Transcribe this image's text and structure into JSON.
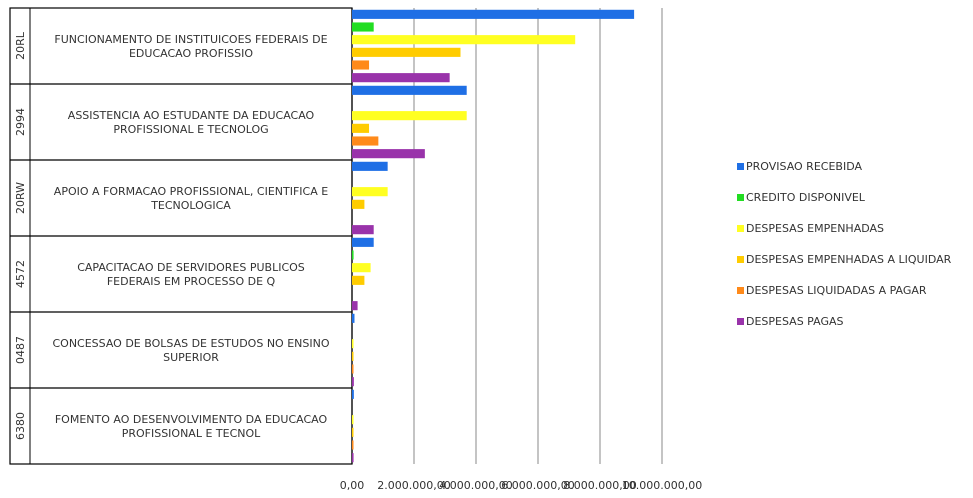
{
  "chart_data": {
    "type": "bar",
    "orientation": "horizontal",
    "category_groups": [
      {
        "code": "20RL",
        "label_lines": [
          "FUNCIONAMENTO DE INSTITUICOES FEDERAIS DE",
          "EDUCACAO PROFISSIO"
        ]
      },
      {
        "code": "2994",
        "label_lines": [
          "ASSISTENCIA AO ESTUDANTE DA EDUCACAO",
          "PROFISSIONAL E TECNOLOG"
        ]
      },
      {
        "code": "20RW",
        "label_lines": [
          "APOIO A FORMACAO PROFISSIONAL, CIENTIFICA E",
          "TECNOLOGICA"
        ]
      },
      {
        "code": "4572",
        "label_lines": [
          "CAPACITACAO DE SERVIDORES PUBLICOS",
          "FEDERAIS EM PROCESSO DE Q"
        ]
      },
      {
        "code": "0487",
        "label_lines": [
          "CONCESSAO DE BOLSAS DE ESTUDOS NO ENSINO",
          "SUPERIOR"
        ]
      },
      {
        "code": "6380",
        "label_lines": [
          "FOMENTO AO DESENVOLVIMENTO DA EDUCACAO",
          "PROFISSIONAL E TECNOL"
        ]
      }
    ],
    "series": [
      {
        "name": "PROVISAO RECEBIDA",
        "color": "#1f6fe5",
        "values": [
          9100000,
          3700000,
          1150000,
          700000,
          80000,
          60000
        ]
      },
      {
        "name": "CREDITO DISPONIVEL",
        "color": "#22dd22",
        "values": [
          700000,
          0,
          0,
          50000,
          0,
          0
        ]
      },
      {
        "name": "DESPESAS EMPENHADAS",
        "color": "#ffff22",
        "values": [
          7200000,
          3700000,
          1150000,
          600000,
          40000,
          30000
        ]
      },
      {
        "name": "DESPESAS EMPENHADAS A LIQUIDAR",
        "color": "#ffcc00",
        "values": [
          3500000,
          550000,
          400000,
          400000,
          20000,
          20000
        ]
      },
      {
        "name": "DESPESAS LIQUIDADAS A PAGAR",
        "color": "#ff8a1a",
        "values": [
          550000,
          850000,
          0,
          0,
          40000,
          20000
        ]
      },
      {
        "name": "DESPESAS PAGAS",
        "color": "#9933aa",
        "values": [
          3150000,
          2350000,
          700000,
          180000,
          60000,
          50000
        ]
      }
    ],
    "x_ticks": [
      "0,00",
      "2.000.000,00",
      "4.000.000,00",
      "6.000.000,00",
      "8.000.000,00",
      "10.000.000,00"
    ],
    "xlim": [
      0,
      10000000
    ],
    "grid": true,
    "legend_position": "right"
  }
}
